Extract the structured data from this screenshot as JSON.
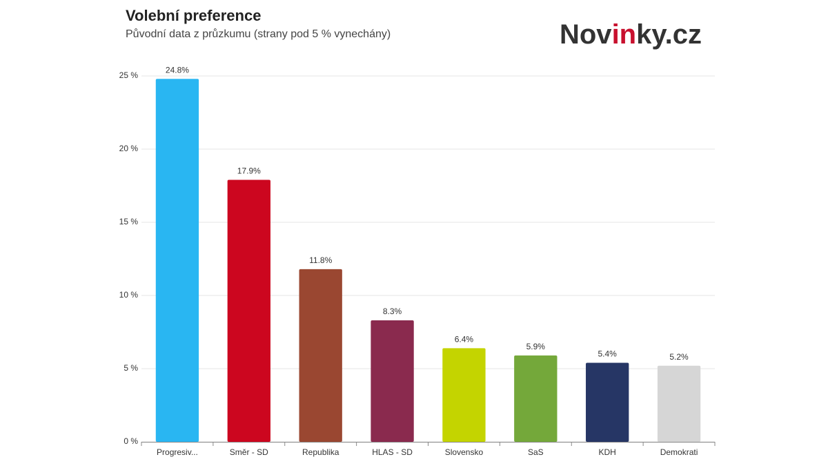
{
  "chart_data": {
    "type": "bar",
    "title": "Volební preference",
    "subtitle": "Původní data z průzkumu (strany pod 5 % vynechány)",
    "logo": [
      "Nov",
      "in",
      "ky.cz"
    ],
    "categories": [
      "Progresiv...",
      "Směr - SD",
      "Republika",
      "HLAS - SD",
      "Slovensko",
      "SaS",
      "KDH",
      "Demokrati"
    ],
    "values": [
      24.8,
      17.9,
      11.8,
      8.3,
      6.4,
      5.9,
      5.4,
      5.2
    ],
    "value_labels": [
      "24.8%",
      "17.9%",
      "11.8%",
      "8.3%",
      "6.4%",
      "5.9%",
      "5.4%",
      "5.2%"
    ],
    "colors": [
      "#29b6f2",
      "#cc061f",
      "#9a4731",
      "#8a2a4e",
      "#c4d400",
      "#74a83a",
      "#263665",
      "#d6d6d6"
    ],
    "ylim": [
      0,
      25
    ],
    "yticks": [
      {
        "value": 0,
        "label": "0 %"
      },
      {
        "value": 5,
        "label": "5 %"
      },
      {
        "value": 10,
        "label": "10 %"
      },
      {
        "value": 15,
        "label": "15 %"
      },
      {
        "value": 20,
        "label": "20 %"
      },
      {
        "value": 25,
        "label": "25 %"
      }
    ],
    "grid": true
  }
}
